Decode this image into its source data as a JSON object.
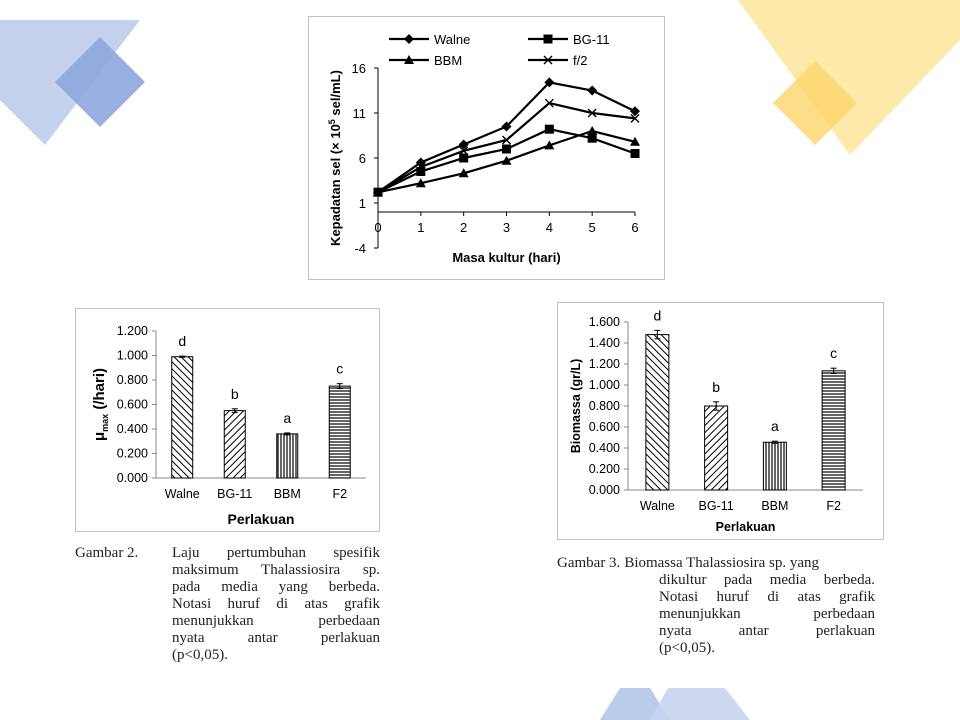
{
  "colors": {
    "blue_deco": "#b4c5e8",
    "blue_deco_dark": "#8fa6de",
    "yellow_deco": "#fde59a",
    "yellow_deco_dark": "#fcd66a"
  },
  "chart_data": [
    {
      "type": "line",
      "title": "",
      "xlabel": "Masa kultur (hari)",
      "ylabel_pre": "Kepadatan sel (× 10",
      "ylabel_sup": "5",
      "ylabel_post": " sel/mL)",
      "x": [
        0,
        1,
        2,
        3,
        4,
        5,
        6
      ],
      "yticks": [
        -4,
        1,
        6,
        11,
        16
      ],
      "ylim": [
        -4,
        16
      ],
      "legend_position": "top",
      "series": [
        {
          "name": "Walne",
          "marker": "diamond",
          "values": [
            2.2,
            5.5,
            7.5,
            9.5,
            14.4,
            13.5,
            11.2
          ]
        },
        {
          "name": "BG-11",
          "marker": "square",
          "values": [
            2.2,
            4.5,
            6.0,
            7.0,
            9.2,
            8.2,
            6.5
          ]
        },
        {
          "name": "BBM",
          "marker": "triangle",
          "values": [
            2.2,
            3.2,
            4.3,
            5.7,
            7.4,
            9.0,
            7.8
          ]
        },
        {
          "name": "f/2",
          "marker": "x",
          "values": [
            2.2,
            5.0,
            6.8,
            8.0,
            12.1,
            11.0,
            10.4
          ]
        }
      ]
    },
    {
      "type": "bar",
      "xlabel": "Perlakuan",
      "ylabel_main": "μ",
      "ylabel_sub": "max",
      "ylabel_post": " (/hari)",
      "categories": [
        "Walne",
        "BG-11",
        "BBM",
        "F2"
      ],
      "values": [
        0.99,
        0.55,
        0.36,
        0.75
      ],
      "errors": [
        0.005,
        0.015,
        0.008,
        0.02
      ],
      "letters": [
        "d",
        "b",
        "a",
        "c"
      ],
      "yticks": [
        "0.000",
        "0.200",
        "0.400",
        "0.600",
        "0.800",
        "1.000",
        "1.200"
      ],
      "ylim": [
        0,
        1.2
      ],
      "patterns": [
        "diag-back",
        "diag-fwd",
        "vertical",
        "horizontal"
      ]
    },
    {
      "type": "bar",
      "xlabel": "Perlakuan",
      "ylabel": "Biomassa (gr/L)",
      "categories": [
        "Walne",
        "BG-11",
        "BBM",
        "F2"
      ],
      "values": [
        1.48,
        0.8,
        0.455,
        1.135
      ],
      "errors": [
        0.04,
        0.04,
        0.01,
        0.025
      ],
      "letters": [
        "d",
        "b",
        "a",
        "c"
      ],
      "yticks": [
        "0.000",
        "0.200",
        "0.400",
        "0.600",
        "0.800",
        "1.000",
        "1.200",
        "1.400",
        "1.600"
      ],
      "ylim": [
        0,
        1.6
      ],
      "patterns": [
        "diag-back",
        "diag-fwd",
        "vertical",
        "horizontal"
      ]
    }
  ],
  "captions": {
    "fig2": {
      "lead": "Gambar 2.",
      "lines": [
        "Laju pertumbuhan spesifik",
        "maksimum Thalassiosira sp.",
        "pada media yang berbeda.",
        "Notasi huruf di atas grafik",
        "menunjukkan perbedaan",
        "nyata antar perlakuan",
        "(p<0,05)."
      ]
    },
    "fig3": {
      "lead": "Gambar 3.",
      "first": "Biomassa Thalassiosira sp. yang",
      "lines": [
        "dikultur pada media berbeda.",
        "Notasi huruf di atas grafik",
        "menunjukkan perbedaan",
        "nyata antar perlakuan",
        "(p<0,05)."
      ]
    }
  }
}
